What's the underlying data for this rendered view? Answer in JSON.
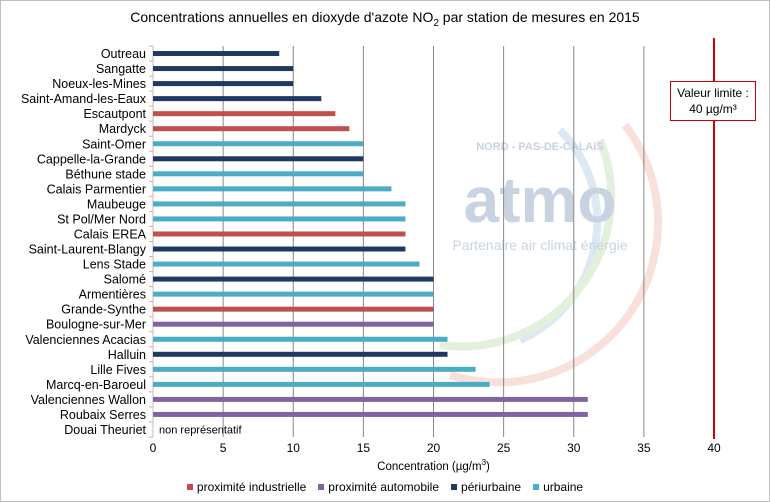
{
  "chart_data": {
    "type": "bar",
    "orientation": "horizontal",
    "title": "Concentrations annuelles en dioxyde d'azote NO",
    "title_subscript": "2",
    "title_suffix": " par station de mesures en 2015",
    "xlabel": "Concentration (µg/m",
    "xlabel_sup": "3",
    "xlabel_suffix": ")",
    "xlim": [
      0,
      40
    ],
    "xticks": [
      0,
      5,
      10,
      15,
      20,
      25,
      30,
      35,
      40
    ],
    "grid": "vertical",
    "legend_position": "bottom",
    "categories": [
      "Outreau",
      "Sangatte",
      "Noeux-les-Mines",
      "Saint-Amand-les-Eaux",
      "Escautpont",
      "Mardyck",
      "Saint-Omer",
      "Cappelle-la-Grande",
      "Béthune stade",
      "Calais Parmentier",
      "Maubeuge",
      "St Pol/Mer Nord",
      "Calais EREA",
      "Saint-Laurent-Blangy",
      "Lens Stade",
      "Salomé",
      "Armentières",
      "Grande-Synthe",
      "Boulogne-sur-Mer",
      "Valenciennes Acacias",
      "Halluin",
      "Lille Fives",
      "Marcq-en-Baroeul",
      "Valenciennes Wallon",
      "Roubaix Serres",
      "Douai Theuriet"
    ],
    "values": [
      9,
      10,
      10,
      12,
      13,
      14,
      15,
      15,
      15,
      17,
      18,
      18,
      18,
      18,
      19,
      20,
      20,
      20,
      20,
      21,
      21,
      23,
      24,
      31,
      31,
      null
    ],
    "types": [
      "periurbaine",
      "periurbaine",
      "periurbaine",
      "periurbaine",
      "industrielle",
      "industrielle",
      "urbaine",
      "periurbaine",
      "urbaine",
      "urbaine",
      "urbaine",
      "urbaine",
      "industrielle",
      "periurbaine",
      "urbaine",
      "periurbaine",
      "urbaine",
      "industrielle",
      "automobile",
      "urbaine",
      "periurbaine",
      "urbaine",
      "urbaine",
      "automobile",
      "automobile",
      null
    ],
    "annotations": {
      "non_representative": "non représentatif",
      "limit_value": 40,
      "limit_label_line1": "Valeur limite :",
      "limit_label_line2": "40 µg/m³"
    },
    "legend": [
      {
        "key": "industrielle",
        "label": "proximité industrielle",
        "color": "#C0504D"
      },
      {
        "key": "automobile",
        "label": "proximité automobile",
        "color": "#8064A2"
      },
      {
        "key": "periurbaine",
        "label": "périurbaine",
        "color": "#1F3864"
      },
      {
        "key": "urbaine",
        "label": "urbaine",
        "color": "#4BACC6"
      }
    ],
    "limit_color": "#CC0000"
  },
  "watermark": {
    "brand": "atmo",
    "region": "NORD - PAS-DE-CALAIS",
    "tagline": "Partenaire air climat énergie"
  }
}
